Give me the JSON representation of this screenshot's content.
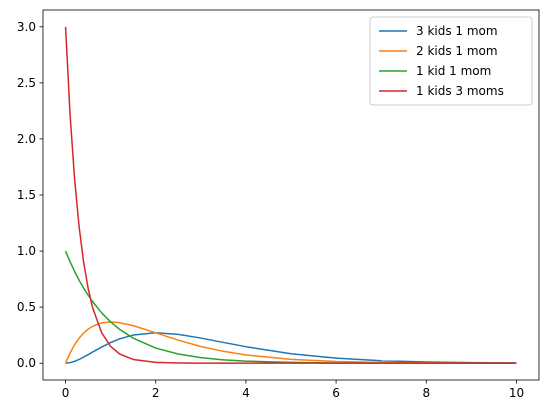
{
  "chart_data": {
    "type": "line",
    "title": "",
    "xlabel": "",
    "ylabel": "",
    "xlim": [
      -0.5,
      10.5
    ],
    "ylim": [
      -0.15,
      3.15
    ],
    "grid": false,
    "legend_position": "top-right",
    "x_ticks": [
      0,
      2,
      4,
      6,
      8,
      10
    ],
    "x_tick_labels": [
      "0",
      "2",
      "4",
      "6",
      "8",
      "10"
    ],
    "y_ticks": [
      0.0,
      0.5,
      1.0,
      1.5,
      2.0,
      2.5,
      3.0
    ],
    "y_tick_labels": [
      "0.0",
      "0.5",
      "1.0",
      "1.5",
      "2.0",
      "2.5",
      "3.0"
    ],
    "x": [
      0,
      0.1,
      0.2,
      0.3,
      0.4,
      0.5,
      0.6,
      0.8,
      1.0,
      1.2,
      1.5,
      2.0,
      2.5,
      3.0,
      3.5,
      4.0,
      5.0,
      6.0,
      7.0,
      8.0,
      9.0,
      10.0
    ],
    "series": [
      {
        "name": "3 kids 1 mom",
        "color": "#1f77b4",
        "values": [
          0.0,
          0.005,
          0.016,
          0.033,
          0.054,
          0.076,
          0.099,
          0.144,
          0.184,
          0.217,
          0.251,
          0.271,
          0.257,
          0.224,
          0.185,
          0.147,
          0.084,
          0.045,
          0.022,
          0.011,
          0.005,
          0.002
        ]
      },
      {
        "name": "2 kids 1 mom",
        "color": "#ff7f0e",
        "values": [
          0.0,
          0.09,
          0.164,
          0.222,
          0.268,
          0.303,
          0.329,
          0.359,
          0.368,
          0.361,
          0.335,
          0.271,
          0.205,
          0.149,
          0.106,
          0.073,
          0.034,
          0.015,
          0.006,
          0.003,
          0.001,
          0.0
        ]
      },
      {
        "name": "1 kid 1 mom",
        "color": "#2ca02c",
        "values": [
          1.0,
          0.905,
          0.819,
          0.741,
          0.67,
          0.607,
          0.549,
          0.449,
          0.368,
          0.301,
          0.223,
          0.135,
          0.082,
          0.05,
          0.03,
          0.018,
          0.007,
          0.002,
          0.001,
          0.0,
          0.0,
          0.0
        ]
      },
      {
        "name": "1 kids 3 moms",
        "color": "#d62728",
        "values": [
          3.0,
          2.222,
          1.646,
          1.22,
          0.904,
          0.669,
          0.496,
          0.272,
          0.149,
          0.082,
          0.033,
          0.007,
          0.002,
          0.0,
          0.0,
          0.0,
          0.0,
          0.0,
          0.0,
          0.0,
          0.0,
          0.0
        ]
      }
    ]
  }
}
